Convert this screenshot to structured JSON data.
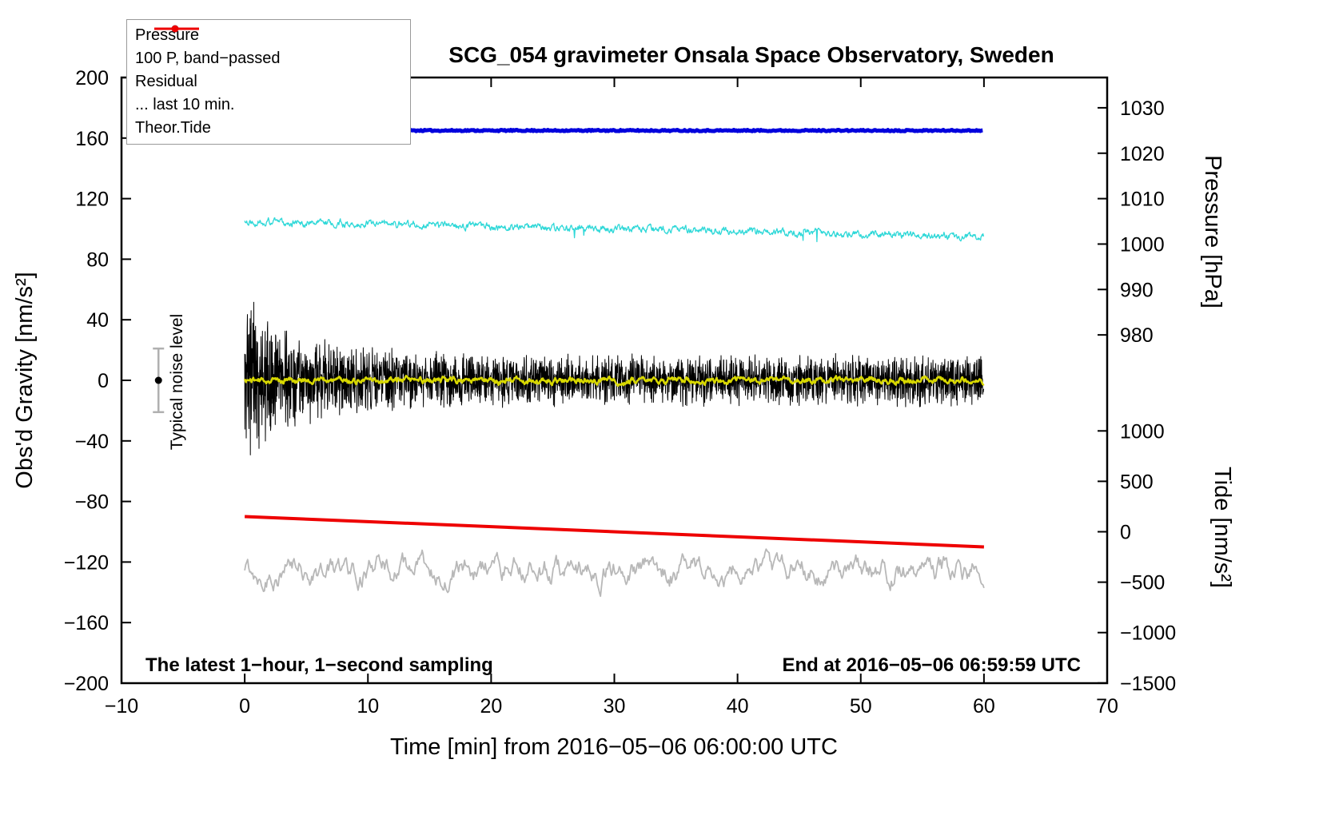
{
  "title": "SCG_054 gravimeter Onsala Space Observatory, Sweden",
  "annotations": {
    "noise_label": "Typical noise level",
    "footer_left": "The latest 1−hour, 1−second sampling",
    "footer_right": "End at 2016−05−06 06:59:59 UTC"
  },
  "legend": {
    "items": [
      {
        "label": "Pressure",
        "color": "#0000dd",
        "dot": true,
        "sample_width": 3
      },
      {
        "label": "100 P, band−passed",
        "color": "#2fd8d8",
        "dot": true,
        "sample_width": 2
      },
      {
        "label": "Residual",
        "color": "#000000",
        "dot": false,
        "sample_width": 2
      },
      {
        "label": "... last 10 min.",
        "color": "#b8b8b8",
        "dot": false,
        "sample_width": 3
      },
      {
        "label": "Theor.Tide",
        "color": "#ee0000",
        "dot": true,
        "sample_width": 3
      }
    ]
  },
  "chart_data": {
    "type": "line",
    "title": "SCG_054 gravimeter Onsala Space Observatory, Sweden",
    "xlabel": "Time [min] from 2016−05−06 06:00:00 UTC",
    "ylabel": "Obs'd Gravity [nm/s²]",
    "y2label_top": "Pressure [hPa]",
    "y2label_bottom": "Tide [nm/s²]",
    "xlim": [
      -10,
      70
    ],
    "ylim": [
      -200,
      200
    ],
    "xticks": [
      -10,
      0,
      10,
      20,
      30,
      40,
      50,
      60,
      70
    ],
    "yticks": [
      -200,
      -160,
      -120,
      -80,
      -40,
      0,
      40,
      80,
      120,
      160,
      200
    ],
    "pressure_axis": {
      "ticks": [
        1030,
        1020,
        1010,
        1000,
        990,
        980
      ],
      "anchor_hpa": 1030,
      "anchor_left_unit": 180,
      "left_units_per_hpa": 3
    },
    "tide_axis": {
      "ticks": [
        1000,
        500,
        0,
        -500,
        -1000,
        -1500
      ],
      "anchor_tide": 0,
      "anchor_left_unit": -100,
      "left_units_per_tide_unit": 0.0666
    },
    "grid": false,
    "legend_position": "top-left",
    "series": [
      {
        "name": "pressure",
        "color": "#0000dd",
        "width": 5,
        "x_range": [
          0,
          60
        ],
        "baseline": 165,
        "noise": 0.9,
        "step": 0.1,
        "approx_value_hpa": 1024
      },
      {
        "name": "band_passed",
        "color": "#2fd8d8",
        "width": 1.3,
        "x_range": [
          0,
          60
        ],
        "start": 105,
        "end": 95,
        "noise": 3.2,
        "step": 0.04
      },
      {
        "name": "residual",
        "color": "#000000",
        "width": 1,
        "x_range": [
          0,
          60
        ],
        "baseline": 0,
        "amp_start": 43,
        "amp_end": 13,
        "decay_minutes": 5,
        "step": 0.02
      },
      {
        "name": "residual_smoothed",
        "color": "#d8d800",
        "width": 2.5,
        "x_range": [
          0,
          60
        ],
        "baseline": 0,
        "noise": 2.6,
        "step": 0.05
      },
      {
        "name": "last_10_min",
        "color": "#b8b8b8",
        "width": 1.8,
        "x_range": [
          0,
          60
        ],
        "baseline": -125,
        "noise": 10,
        "step": 0.08
      },
      {
        "name": "theor_tide",
        "color": "#ee0000",
        "width": 4,
        "x_range": [
          0,
          60
        ],
        "start": -90,
        "end": -110,
        "start_tide": 150,
        "end_tide": -150
      }
    ],
    "noise_marker": {
      "x": -7,
      "y": 0,
      "error": 21
    }
  }
}
